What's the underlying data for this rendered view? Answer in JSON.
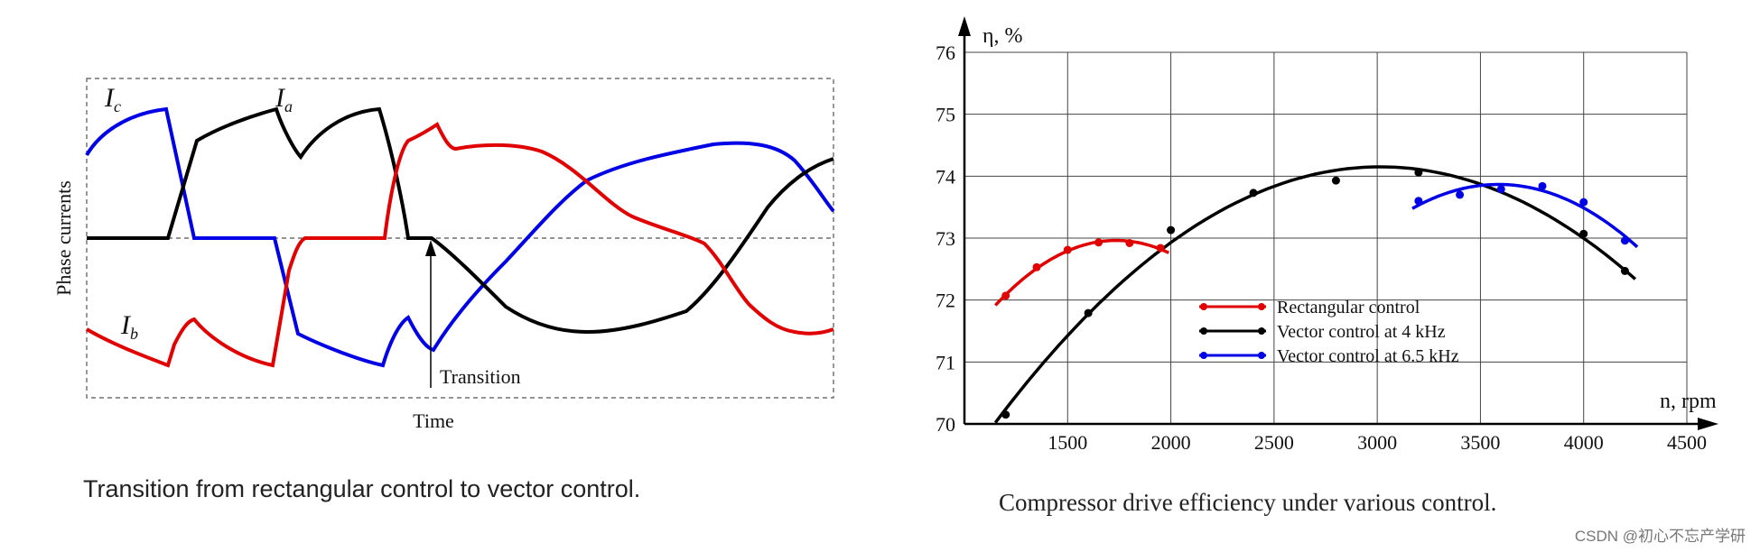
{
  "chart_data": [
    {
      "type": "line",
      "caption": "Transition from rectangular control to vector control.",
      "xlabel": "Time",
      "ylabel": "Phase currents",
      "annotation": "Transition",
      "grid": false,
      "series": [
        {
          "label": "I",
          "subscript": "a",
          "color": "#000000"
        },
        {
          "label": "I",
          "subscript": "b",
          "color": "#e00000"
        },
        {
          "label": "I",
          "subscript": "c",
          "color": "#0000e6"
        }
      ]
    },
    {
      "type": "line",
      "caption": "Compressor drive efficiency under various control.",
      "xlabel": "n, rpm",
      "ylabel": "η, %",
      "xlim": [
        1000,
        4500
      ],
      "ylim": [
        70,
        76
      ],
      "xticks": [
        "1500",
        "2000",
        "2500",
        "3000",
        "3500",
        "4000",
        "4500"
      ],
      "yticks": [
        "70",
        "71",
        "72",
        "73",
        "74",
        "75",
        "76"
      ],
      "grid": true,
      "legend_position": "center",
      "series": [
        {
          "name": "Rectangular control",
          "color": "#e00000",
          "x": [
            1200,
            1350,
            1500,
            1650,
            1800,
            1950
          ],
          "y": [
            72.07,
            72.53,
            72.81,
            72.93,
            72.92,
            72.84
          ]
        },
        {
          "name": "Vector control at 4 kHz",
          "color": "#000000",
          "x": [
            1200,
            1600,
            2000,
            2400,
            2800,
            3200,
            4000,
            4200
          ],
          "y": [
            70.15,
            71.79,
            73.13,
            73.73,
            73.93,
            74.06,
            73.07,
            72.47
          ]
        },
        {
          "name": "Vector control at 6.5 kHz",
          "color": "#0000e6",
          "x": [
            3200,
            3400,
            3600,
            3800,
            4000,
            4200
          ],
          "y": [
            73.6,
            73.7,
            73.79,
            73.84,
            73.58,
            72.96
          ]
        }
      ]
    }
  ],
  "watermark": "CSDN @初心不忘产学研"
}
